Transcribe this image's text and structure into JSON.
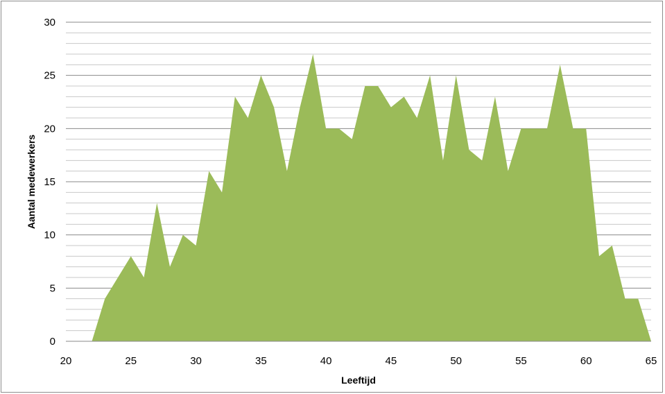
{
  "chart_data": {
    "type": "area",
    "title": "",
    "xlabel": "Leeftijd",
    "ylabel": "Aantal medewerkers",
    "xlim": [
      20,
      65
    ],
    "ylim": [
      0,
      30
    ],
    "x_ticks": [
      20,
      25,
      30,
      35,
      40,
      45,
      50,
      55,
      60,
      65
    ],
    "y_ticks": [
      0,
      5,
      10,
      15,
      20,
      25,
      30
    ],
    "grid": {
      "major_y": true,
      "minor_y": true,
      "x": false
    },
    "legend": "none",
    "fill_color": "#9bbb59",
    "series": [
      {
        "x": [
          20,
          21,
          22,
          23,
          24,
          25,
          26,
          27,
          28,
          29,
          30,
          31,
          32,
          33,
          34,
          35,
          36,
          37,
          38,
          39,
          40,
          41,
          42,
          43,
          44,
          45,
          46,
          47,
          48,
          49,
          50,
          51,
          52,
          53,
          54,
          55,
          56,
          57,
          58,
          59,
          60,
          61,
          62,
          63,
          64,
          65
        ],
        "values": [
          0,
          0,
          0,
          4,
          6,
          8,
          6,
          13,
          7,
          10,
          9,
          16,
          14,
          23,
          21,
          25,
          22,
          16,
          22,
          27,
          20,
          20,
          19,
          24,
          24,
          22,
          23,
          21,
          25,
          17,
          25,
          18,
          17,
          23,
          16,
          20,
          20,
          20,
          26,
          20,
          20,
          8,
          9,
          4,
          4,
          0
        ]
      }
    ]
  }
}
